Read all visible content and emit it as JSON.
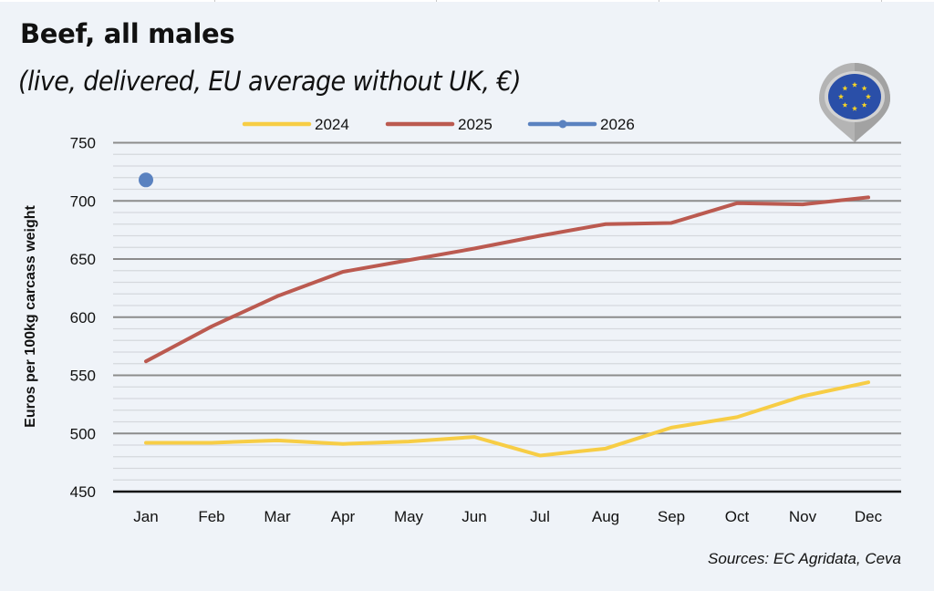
{
  "header": {
    "title": "Beef, all males",
    "subtitle": "(live, delivered, EU average without UK, €)"
  },
  "footer": {
    "source": "Sources: EC Agridata, Ceva"
  },
  "badge": {
    "icon": "eu-flag-pin-icon",
    "colors": {
      "flag": "#2a4fa8",
      "stars": "#f5d327",
      "pin": "#b4b4b4"
    }
  },
  "chart_data": {
    "type": "line",
    "title": "Beef, all males",
    "subtitle": "(live, delivered, EU average without UK, €)",
    "xlabel": "",
    "ylabel": "Euros per 100kg carcass weight",
    "categories": [
      "Jan",
      "Feb",
      "Mar",
      "Apr",
      "May",
      "Jun",
      "Jul",
      "Aug",
      "Sep",
      "Oct",
      "Nov",
      "Dec"
    ],
    "ylim": [
      450,
      750
    ],
    "yticks": [
      450,
      500,
      550,
      600,
      650,
      700,
      750
    ],
    "minor_grid_step": 10,
    "grid": true,
    "legend": "top-center",
    "series": [
      {
        "name": "2024",
        "color": "#f7cd45",
        "marker": false,
        "values": [
          492,
          492,
          494,
          491,
          493,
          497,
          481,
          487,
          505,
          514,
          532,
          544
        ]
      },
      {
        "name": "2025",
        "color": "#bb5a50",
        "marker": false,
        "values": [
          562,
          592,
          618,
          639,
          649,
          659,
          670,
          680,
          681,
          698,
          697,
          703
        ]
      },
      {
        "name": "2026",
        "color": "#5a82c0",
        "marker": true,
        "values": [
          718,
          null,
          null,
          null,
          null,
          null,
          null,
          null,
          null,
          null,
          null,
          null
        ]
      }
    ],
    "source": "Sources: EC Agridata, Ceva"
  }
}
